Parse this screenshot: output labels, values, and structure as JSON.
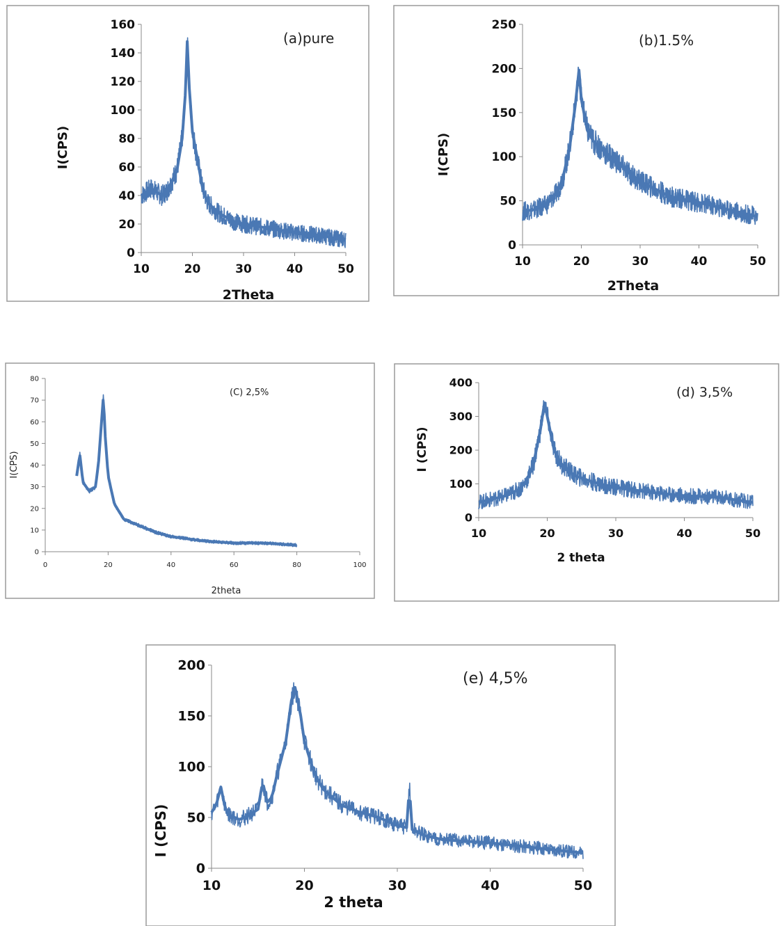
{
  "colors": {
    "series": "#4a78b4",
    "axis": "#8a8a8a",
    "frame": "#9a9a9a",
    "text": "#222222"
  },
  "chart_data": [
    {
      "id": "a",
      "type": "line",
      "annotation": "(a)pure",
      "xlabel": "2Theta",
      "ylabel": "I(CPS)",
      "xlim": [
        10,
        50
      ],
      "ylim": [
        0,
        160
      ],
      "xticks": [
        "10",
        "20",
        "30",
        "40",
        "50"
      ],
      "yticks": [
        "0",
        "20",
        "40",
        "60",
        "80",
        "100",
        "120",
        "140",
        "160"
      ],
      "grid": false,
      "legend": "none",
      "series": [
        {
          "x": [
            10,
            12,
            14,
            15,
            16,
            17,
            18,
            18.6,
            19,
            19.4,
            20,
            21,
            22,
            23,
            25,
            28,
            30,
            35,
            40,
            45,
            48,
            50
          ],
          "y": [
            40,
            45,
            40,
            43,
            50,
            58,
            80,
            110,
            148,
            115,
            85,
            65,
            45,
            35,
            28,
            22,
            20,
            17,
            14,
            12,
            10,
            9
          ]
        }
      ]
    },
    {
      "id": "b",
      "type": "line",
      "annotation": "(b)1.5%",
      "xlabel": "2Theta",
      "ylabel": "I(CPS)",
      "xlim": [
        10,
        50
      ],
      "ylim": [
        0,
        250
      ],
      "xticks": [
        "10",
        "20",
        "30",
        "40",
        "50"
      ],
      "yticks": [
        "0",
        "50",
        "100",
        "150",
        "200",
        "250"
      ],
      "grid": false,
      "legend": "none",
      "series": [
        {
          "x": [
            10,
            12,
            14,
            16,
            17,
            18,
            19,
            19.6,
            20,
            21,
            22,
            24,
            26,
            28,
            30,
            35,
            40,
            45,
            50
          ],
          "y": [
            38,
            40,
            45,
            60,
            80,
            110,
            160,
            198,
            165,
            130,
            118,
            105,
            95,
            82,
            72,
            55,
            48,
            40,
            32
          ]
        }
      ]
    },
    {
      "id": "c",
      "type": "line",
      "annotation": "(C) 2,5%",
      "xlabel": "2theta",
      "ylabel": "I(CPS)",
      "xlim": [
        0,
        100
      ],
      "ylim": [
        0,
        80
      ],
      "xticks": [
        "0",
        "20",
        "40",
        "60",
        "80",
        "100"
      ],
      "yticks": [
        "0",
        "10",
        "20",
        "30",
        "40",
        "50",
        "60",
        "70",
        "80"
      ],
      "grid": false,
      "legend": "none",
      "series": [
        {
          "x": [
            10,
            11,
            12,
            14,
            16,
            17,
            18,
            18.5,
            19,
            20,
            22,
            25,
            30,
            35,
            40,
            50,
            60,
            70,
            80
          ],
          "y": [
            35,
            45,
            32,
            28,
            30,
            42,
            62,
            72,
            55,
            35,
            22,
            15,
            12,
            9,
            7,
            5,
            4,
            4,
            3
          ]
        }
      ]
    },
    {
      "id": "d",
      "type": "line",
      "annotation": "(d) 3,5%",
      "xlabel": "2 theta",
      "ylabel": "I (CPS)",
      "xlim": [
        10,
        50
      ],
      "ylim": [
        0,
        400
      ],
      "xticks": [
        "10",
        "20",
        "30",
        "40",
        "50"
      ],
      "yticks": [
        "0",
        "100",
        "200",
        "300",
        "400"
      ],
      "grid": false,
      "legend": "none",
      "series": [
        {
          "x": [
            10,
            12,
            14,
            16,
            17,
            18,
            19,
            19.6,
            20,
            21,
            22,
            24,
            26,
            28,
            30,
            35,
            40,
            45,
            50
          ],
          "y": [
            45,
            55,
            65,
            85,
            110,
            160,
            260,
            340,
            300,
            200,
            160,
            125,
            110,
            98,
            90,
            75,
            65,
            60,
            45
          ]
        }
      ]
    },
    {
      "id": "e",
      "type": "line",
      "annotation": "(e) 4,5%",
      "xlabel": "2 theta",
      "ylabel": "I (CPS)",
      "xlim": [
        10,
        50
      ],
      "ylim": [
        0,
        200
      ],
      "xticks": [
        "10",
        "20",
        "30",
        "40",
        "50"
      ],
      "yticks": [
        "0",
        "50",
        "100",
        "150",
        "200"
      ],
      "grid": false,
      "legend": "none",
      "series": [
        {
          "x": [
            10,
            10.5,
            11,
            11.5,
            12,
            13,
            14,
            15,
            15.5,
            16,
            16.5,
            17,
            18,
            18.6,
            19,
            19.6,
            20,
            21,
            22,
            24,
            26,
            28,
            30,
            31,
            31.3,
            31.6,
            33,
            35,
            40,
            45,
            50
          ],
          "y": [
            55,
            62,
            80,
            58,
            52,
            48,
            52,
            58,
            85,
            65,
            70,
            90,
            125,
            165,
            178,
            150,
            125,
            95,
            78,
            62,
            55,
            50,
            42,
            40,
            80,
            38,
            32,
            28,
            25,
            20,
            15
          ]
        }
      ]
    }
  ]
}
